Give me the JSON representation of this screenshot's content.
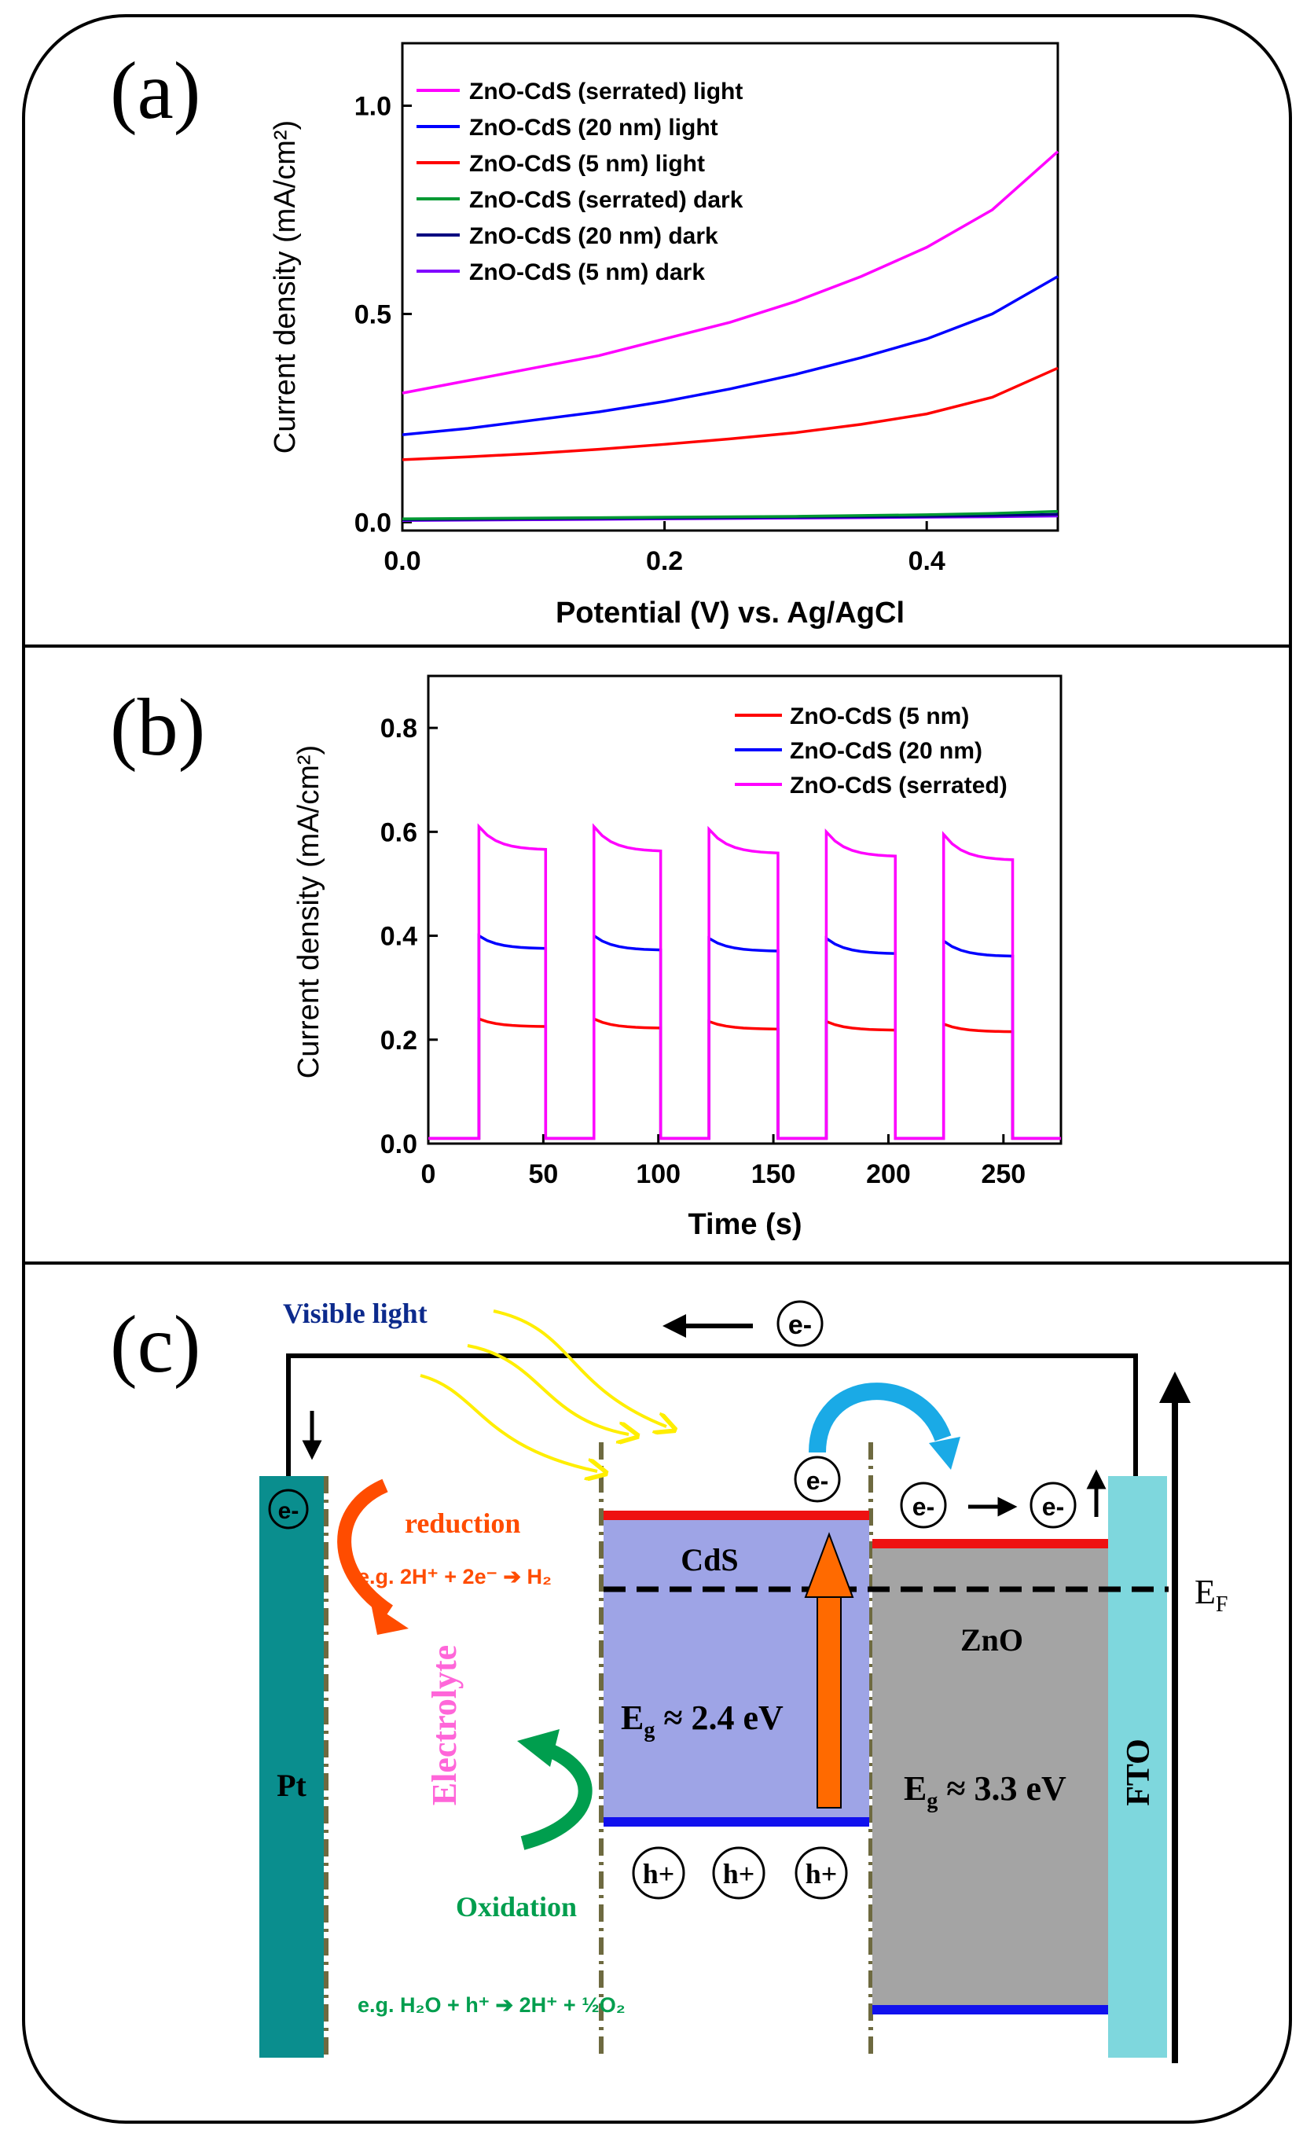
{
  "panels": {
    "a": "(a)",
    "b": "(b)",
    "c": "(c)"
  },
  "chart_data": [
    {
      "type": "line",
      "title": "",
      "xlabel": "Potential (V) vs. Ag/AgCl",
      "ylabel": "Current density (mA/cm²)",
      "xlim": [
        0,
        0.5
      ],
      "ylim": [
        -0.02,
        1.15
      ],
      "xticks": [
        0.0,
        0.2,
        0.4
      ],
      "xtick_labels": [
        "0.0",
        "0.2",
        "0.4"
      ],
      "yticks": [
        0.0,
        0.5,
        1.0
      ],
      "ytick_labels": [
        "0.0",
        "0.5",
        "1.0"
      ],
      "legend_position": "top-left",
      "x": [
        0.0,
        0.05,
        0.1,
        0.15,
        0.2,
        0.25,
        0.3,
        0.35,
        0.4,
        0.45,
        0.5
      ],
      "series": [
        {
          "name": "ZnO-CdS (serrated) light",
          "color": "#ff00ff",
          "values": [
            0.31,
            0.34,
            0.37,
            0.4,
            0.44,
            0.48,
            0.53,
            0.59,
            0.66,
            0.75,
            0.89
          ]
        },
        {
          "name": "ZnO-CdS (20 nm) light",
          "color": "#0000ff",
          "values": [
            0.21,
            0.225,
            0.245,
            0.265,
            0.29,
            0.32,
            0.355,
            0.395,
            0.44,
            0.5,
            0.59
          ]
        },
        {
          "name": "ZnO-CdS (5 nm) light",
          "color": "#ff0000",
          "values": [
            0.15,
            0.157,
            0.165,
            0.175,
            0.187,
            0.2,
            0.215,
            0.235,
            0.26,
            0.3,
            0.37
          ]
        },
        {
          "name": "ZnO-CdS (serrated) dark",
          "color": "#009933",
          "values": [
            0.008,
            0.009,
            0.01,
            0.011,
            0.012,
            0.013,
            0.014,
            0.016,
            0.018,
            0.021,
            0.026
          ]
        },
        {
          "name": "ZnO-CdS (20 nm) dark",
          "color": "#000080",
          "values": [
            0.006,
            0.007,
            0.008,
            0.009,
            0.01,
            0.011,
            0.012,
            0.013,
            0.014,
            0.016,
            0.019
          ]
        },
        {
          "name": "ZnO-CdS (5 nm) dark",
          "color": "#8000ff",
          "values": [
            0.004,
            0.005,
            0.006,
            0.007,
            0.008,
            0.009,
            0.01,
            0.011,
            0.012,
            0.013,
            0.015
          ]
        }
      ]
    },
    {
      "type": "line",
      "title": "",
      "xlabel": "Time (s)",
      "ylabel": "Current density (mA/cm²)",
      "xlim": [
        0,
        275
      ],
      "ylim": [
        0,
        0.9
      ],
      "xticks": [
        0,
        50,
        100,
        150,
        200,
        250
      ],
      "xtick_labels": [
        "0",
        "50",
        "100",
        "150",
        "200",
        "250"
      ],
      "yticks": [
        0.0,
        0.2,
        0.4,
        0.6,
        0.8
      ],
      "ytick_labels": [
        "0.0",
        "0.2",
        "0.4",
        "0.6",
        "0.8"
      ],
      "legend_position": "top-right",
      "on_intervals": [
        [
          22,
          51
        ],
        [
          72,
          101
        ],
        [
          122,
          152
        ],
        [
          173,
          203
        ],
        [
          224,
          254
        ]
      ],
      "series": [
        {
          "name": "ZnO-CdS (5 nm)",
          "color": "#ff0000",
          "dark": 0.01,
          "peaks": [
            0.24,
            0.24,
            0.235,
            0.235,
            0.23
          ],
          "plateaus": [
            0.225,
            0.222,
            0.22,
            0.218,
            0.215
          ]
        },
        {
          "name": "ZnO-CdS (20 nm)",
          "color": "#0000ff",
          "dark": 0.01,
          "peaks": [
            0.4,
            0.4,
            0.395,
            0.395,
            0.39
          ],
          "plateaus": [
            0.375,
            0.372,
            0.37,
            0.365,
            0.36
          ]
        },
        {
          "name": "ZnO-CdS (serrated)",
          "color": "#ff00ff",
          "dark": 0.01,
          "peaks": [
            0.61,
            0.61,
            0.605,
            0.6,
            0.595
          ],
          "plateaus": [
            0.565,
            0.562,
            0.558,
            0.552,
            0.545
          ]
        }
      ]
    }
  ],
  "diagram": {
    "visible_light": "Visible light",
    "electron": "e-",
    "hole": "h+",
    "reduction": "reduction",
    "reduction_eq": "e.g. 2H⁺ + 2e⁻ ➔ H₂",
    "electrolyte": "Electrolyte",
    "oxidation": "Oxidation",
    "oxidation_eq": "e.g. H₂O + h⁺ ➔ 2H⁺ + ½O₂",
    "pt": "Pt",
    "cds": "CdS",
    "cds_gap": "E",
    "cds_gap_sub": "g",
    "cds_gap_val": " ≈ 2.4 eV",
    "zno": "ZnO",
    "zno_gap": "E",
    "zno_gap_sub": "g",
    "zno_gap_val": " ≈ 3.3 eV",
    "fto": "FTO",
    "fermi": "E",
    "fermi_sub": "F",
    "colors": {
      "pt": "#0a8e8e",
      "cds": "#9ea4e6",
      "zno": "#a4a4a4",
      "fto": "#7ed7dd",
      "reduction": "#ff4c00",
      "oxidation": "#009e4e",
      "electrolyte": "#ff66d9",
      "light": "#ffee00",
      "cds_arrow": "#ff6a00",
      "transfer": "#1aaae6",
      "visible_light_text": "#0c2a8c"
    }
  }
}
